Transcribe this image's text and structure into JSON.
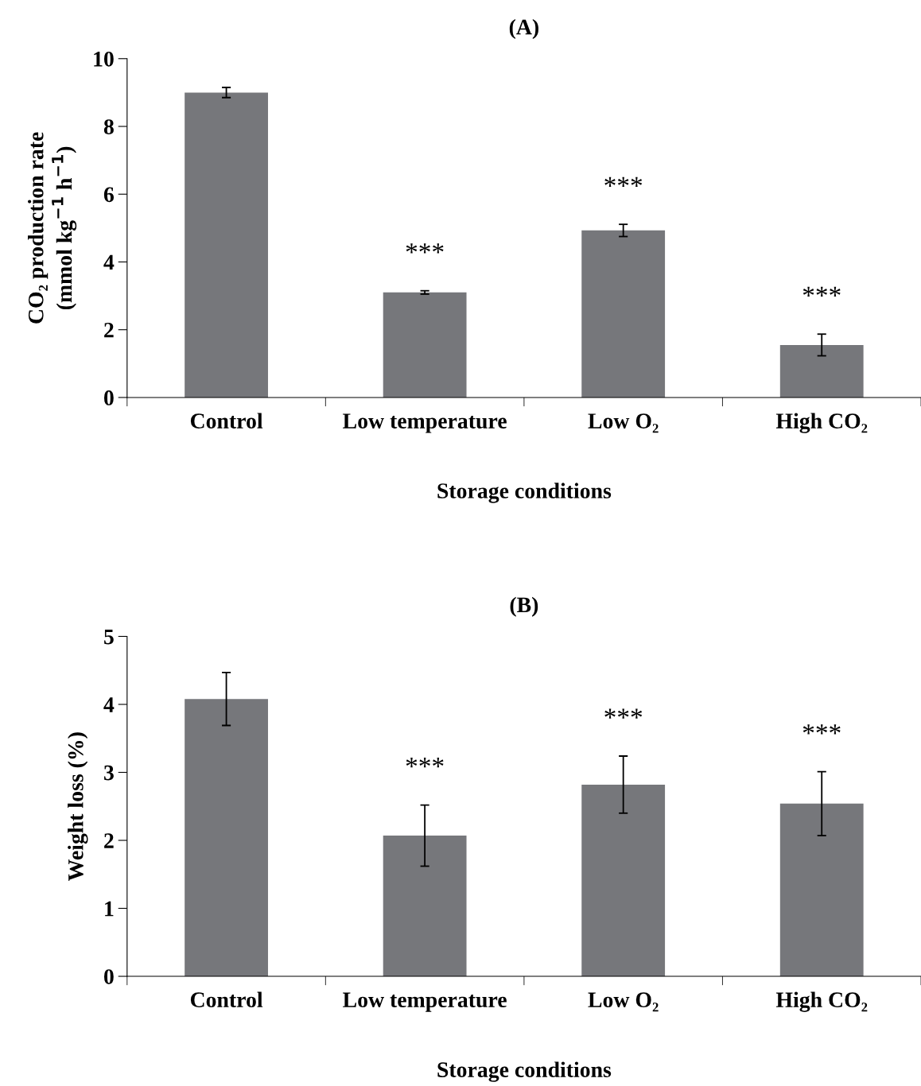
{
  "chart_data": [
    {
      "type": "bar",
      "title": "(A)",
      "xlabel": "Storage conditions",
      "ylabel": "CO₂ production rate\n(mmol kg$^{−1}$ h$^{−1}$)",
      "categories": [
        "Control",
        "Low temperature",
        "Low O₂",
        "High CO₂"
      ],
      "values": [
        9.0,
        3.1,
        4.93,
        1.55
      ],
      "errors": [
        0.15,
        0.05,
        0.18,
        0.32
      ],
      "color": "#76777b",
      "ylim": [
        0,
        10
      ],
      "yticks": [
        0,
        2,
        4,
        6,
        8,
        10
      ],
      "grid": false,
      "annotations": [
        "***",
        "***",
        "***"
      ]
    },
    {
      "type": "bar",
      "title": "(B)",
      "xlabel": "Storage conditions",
      "ylabel": "Weight loss (%)",
      "categories": [
        "Control",
        "Low temperature",
        "Low O₂",
        "High CO₂"
      ],
      "values": [
        4.08,
        2.07,
        2.82,
        2.54
      ],
      "errors": [
        0.39,
        0.45,
        0.42,
        0.47
      ],
      "color": "#76777b",
      "ylim": [
        0,
        5
      ],
      "yticks": [
        0,
        1,
        2,
        3,
        4,
        5
      ],
      "grid": false,
      "annotations": [
        "***",
        "***",
        "***"
      ]
    }
  ]
}
